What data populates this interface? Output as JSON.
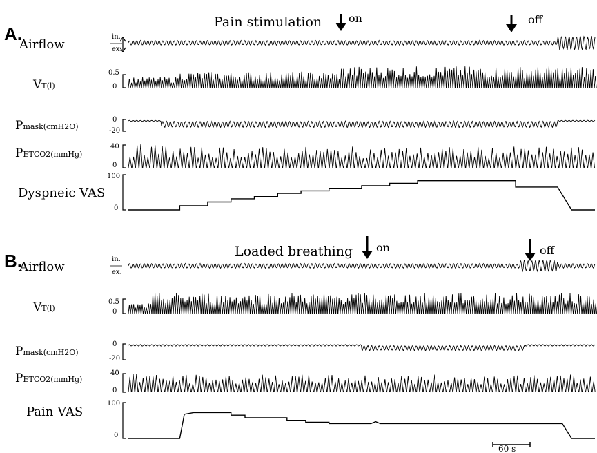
{
  "chart_data": [
    {
      "panel": "A.",
      "type": "line",
      "stimulus": {
        "label": "Pain stimulation",
        "on_label": "on",
        "off_label": "off"
      },
      "channels": [
        {
          "key": "airflow",
          "label": "Airflow",
          "tick_top": "in.",
          "tick_bottom": "ex."
        },
        {
          "key": "vt",
          "label_main": "V",
          "label_sub": "T(l)",
          "ticks": [
            "0.5",
            "0"
          ]
        },
        {
          "key": "pmask",
          "label_main": "P",
          "label_sub": "mask(cmH2O)",
          "ticks": [
            "0",
            "-20"
          ]
        },
        {
          "key": "petco2",
          "label_main": "P",
          "label_sub": "ETCO2(mmHg)",
          "ticks": [
            "40",
            "0"
          ]
        },
        {
          "key": "vas",
          "label": "Dyspneic VAS",
          "ticks": [
            "100",
            "0"
          ],
          "vas_points": [
            [
              0,
              0
            ],
            [
              0.11,
              0
            ],
            [
              0.11,
              13
            ],
            [
              0.17,
              13
            ],
            [
              0.17,
              25
            ],
            [
              0.22,
              25
            ],
            [
              0.22,
              35
            ],
            [
              0.27,
              35
            ],
            [
              0.27,
              42
            ],
            [
              0.32,
              42
            ],
            [
              0.32,
              52
            ],
            [
              0.37,
              52
            ],
            [
              0.37,
              60
            ],
            [
              0.43,
              60
            ],
            [
              0.43,
              68
            ],
            [
              0.5,
              68
            ],
            [
              0.5,
              76
            ],
            [
              0.56,
              76
            ],
            [
              0.56,
              84
            ],
            [
              0.62,
              84
            ],
            [
              0.62,
              92
            ],
            [
              0.83,
              92
            ],
            [
              0.83,
              72
            ],
            [
              0.92,
              72
            ],
            [
              0.95,
              0
            ],
            [
              1,
              0
            ]
          ]
        }
      ]
    },
    {
      "panel": "B.",
      "type": "line",
      "stimulus": {
        "label": "Loaded breathing",
        "on_label": "on",
        "off_label": "off"
      },
      "channels": [
        {
          "key": "airflow",
          "label": "Airflow",
          "tick_top": "in.",
          "tick_bottom": "ex."
        },
        {
          "key": "vt",
          "label_main": "V",
          "label_sub": "T(l)",
          "ticks": [
            "0.5",
            "0"
          ]
        },
        {
          "key": "pmask",
          "label_main": "P",
          "label_sub": "mask(cmH2O)",
          "ticks": [
            "0",
            "-20"
          ]
        },
        {
          "key": "petco2",
          "label_main": "P",
          "label_sub": "ETCO2(mmHg)",
          "ticks": [
            "40",
            "0"
          ]
        },
        {
          "key": "vas",
          "label": "Pain VAS",
          "ticks": [
            "100",
            "0"
          ],
          "vas_points": [
            [
              0,
              0
            ],
            [
              0.11,
              0
            ],
            [
              0.12,
              75
            ],
            [
              0.14,
              80
            ],
            [
              0.22,
              80
            ],
            [
              0.22,
              72
            ],
            [
              0.25,
              72
            ],
            [
              0.25,
              64
            ],
            [
              0.34,
              64
            ],
            [
              0.34,
              56
            ],
            [
              0.38,
              56
            ],
            [
              0.38,
              50
            ],
            [
              0.43,
              50
            ],
            [
              0.43,
              46
            ],
            [
              0.52,
              46
            ],
            [
              0.53,
              52
            ],
            [
              0.54,
              46
            ],
            [
              0.93,
              46
            ],
            [
              0.95,
              0
            ],
            [
              1,
              0
            ]
          ]
        }
      ]
    }
  ],
  "scale_bar": {
    "label": "60 s"
  }
}
